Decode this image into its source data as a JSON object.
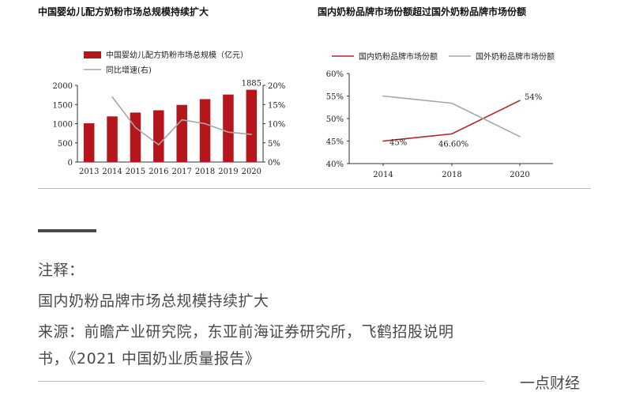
{
  "colors": {
    "bar": "#b5161c",
    "growth": "#a6a6a6",
    "domestic": "#b5232a",
    "foreign": "#a6a6a6"
  },
  "chart_data": [
    {
      "type": "bar",
      "title": "中国婴幼儿配方奶粉市场总规模持续扩大",
      "categories": [
        "2013",
        "2014",
        "2015",
        "2016",
        "2017",
        "2018",
        "2019",
        "2020"
      ],
      "series": [
        {
          "name": "中国婴幼儿配方奶粉市场总规模（亿元）",
          "type": "bar",
          "axis": "left",
          "values": [
            1010,
            1190,
            1290,
            1350,
            1490,
            1640,
            1760,
            1885
          ]
        },
        {
          "name": "同比增速(右)",
          "type": "line",
          "axis": "right",
          "values": [
            null,
            17,
            9,
            4.5,
            11,
            10,
            7.8,
            7.2
          ]
        }
      ],
      "ylim": [
        0,
        2000
      ],
      "yticks": [
        "0",
        "500",
        "1000",
        "1500",
        "2000"
      ],
      "y2lim": [
        0,
        20
      ],
      "y2ticks": [
        "0%",
        "5%",
        "10%",
        "15%",
        "20%"
      ],
      "data_labels": [
        {
          "index": 7,
          "text": "1885"
        }
      ],
      "legend": "top-left",
      "grid": false
    },
    {
      "type": "line",
      "title": "国内奶粉品牌市场份额超过国外奶粉品牌市场份额",
      "categories": [
        "2014",
        "2018",
        "2020"
      ],
      "series": [
        {
          "name": "国内奶粉品牌市场份额",
          "values": [
            45,
            46.6,
            54
          ]
        },
        {
          "name": "国外奶粉品牌市场份额",
          "values": [
            55,
            53.4,
            46
          ]
        }
      ],
      "ylim": [
        40,
        60
      ],
      "yticks": [
        "40%",
        "45%",
        "50%",
        "55%",
        "60%"
      ],
      "data_labels": [
        {
          "series": 0,
          "index": 0,
          "text": "45%"
        },
        {
          "series": 0,
          "index": 1,
          "text": "46.60%"
        },
        {
          "series": 0,
          "index": 2,
          "text": "54%"
        }
      ],
      "legend": "top",
      "grid": false
    }
  ],
  "notes": {
    "heading": "注释：",
    "line1": "国内奶粉品牌市场总规模持续扩大",
    "line2": "来源：前瞻产业研究院，东亚前海证券研究所，飞鹤招股说明",
    "line3": "书，《2021 中国奶业质量报告》"
  },
  "brand": "一点财经"
}
